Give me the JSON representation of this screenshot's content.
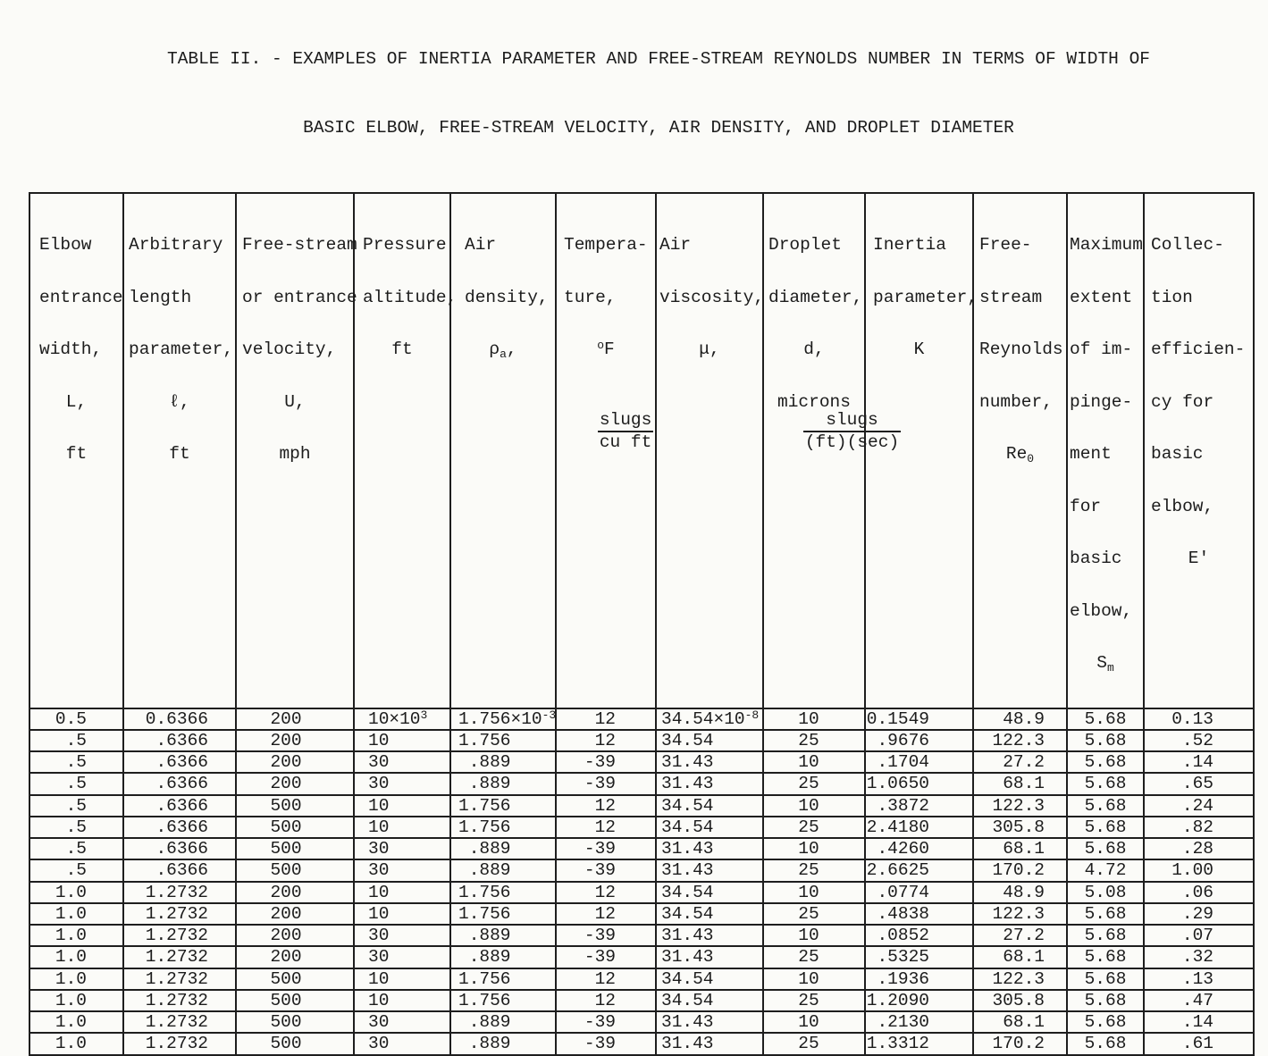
{
  "page": {
    "title_line1": "TABLE II. - EXAMPLES OF INERTIA PARAMETER AND FREE-STREAM REYNOLDS NUMBER IN TERMS OF WIDTH OF",
    "title_line2": "BASIC ELBOW, FREE-STREAM VELOCITY, AIR DENSITY, AND DROPLET DIAMETER"
  },
  "table": {
    "headers": [
      {
        "id": "elbow-entrance-width",
        "lines": [
          "Elbow",
          "entrance",
          "width,"
        ],
        "symbol": "L,",
        "unit": "ft"
      },
      {
        "id": "arbitrary-length-parameter",
        "lines": [
          "Arbitrary",
          "length",
          "parameter,"
        ],
        "symbol": "ℓ,",
        "unit": "ft"
      },
      {
        "id": "free-stream-velocity",
        "lines": [
          "Free-stream",
          "or entrance",
          "velocity,"
        ],
        "symbol": "U,",
        "unit": "mph"
      },
      {
        "id": "pressure-altitude",
        "lines": [
          "Pressure",
          "altitude,"
        ],
        "unit": "ft"
      },
      {
        "id": "air-density",
        "lines": [
          "Air",
          "density,"
        ],
        "symbol_base": "ρ",
        "symbol_sub": "a",
        "symbol_tail": ",",
        "frac_num": "slugs",
        "frac_den": "cu ft"
      },
      {
        "id": "temperature",
        "lines": [
          "Tempera-",
          "ture,"
        ],
        "unit_sup": "o",
        "unit_base": "F"
      },
      {
        "id": "air-viscosity",
        "lines": [
          "Air",
          "viscosity,"
        ],
        "symbol": "μ,",
        "frac_num": "slugs",
        "frac_den": "(ft)(sec)"
      },
      {
        "id": "droplet-diameter",
        "lines": [
          "Droplet",
          "diameter,"
        ],
        "symbol": "d,",
        "unit": "microns"
      },
      {
        "id": "inertia-parameter",
        "lines": [
          "Inertia",
          "parameter,"
        ],
        "symbol": "K"
      },
      {
        "id": "free-stream-reynolds-number",
        "lines": [
          "Free-",
          "stream",
          "Reynolds",
          "number,"
        ],
        "symbol_base": "Re",
        "symbol_sub": "0"
      },
      {
        "id": "maximum-extent-impingement",
        "lines": [
          "Maximum",
          "extent",
          "of im-",
          "pinge-",
          "ment",
          "for",
          "basic",
          "elbow,"
        ],
        "symbol_base": "S",
        "symbol_sub": "m"
      },
      {
        "id": "collection-efficiency",
        "lines": [
          "Collec-",
          "tion",
          "efficien-",
          "cy for",
          "basic",
          "elbow,"
        ],
        "symbol": "E'"
      }
    ],
    "rows": [
      [
        "0.5",
        "0.6366",
        "200",
        "10×10^3",
        "1.756×10^-3",
        "12",
        "34.54×10^-8",
        "10",
        "0.1549",
        "48.9",
        "5.68",
        "0.13"
      ],
      [
        ".5",
        ".6366",
        "200",
        "10",
        "1.756",
        "12",
        "34.54",
        "25",
        ".9676",
        "122.3",
        "5.68",
        ".52"
      ],
      [
        ".5",
        ".6366",
        "200",
        "30",
        " .889",
        "-39",
        "31.43",
        "10",
        ".1704",
        "27.2",
        "5.68",
        ".14"
      ],
      [
        ".5",
        ".6366",
        "200",
        "30",
        " .889",
        "-39",
        "31.43",
        "25",
        "1.0650",
        "68.1",
        "5.68",
        ".65"
      ],
      [
        ".5",
        ".6366",
        "500",
        "10",
        "1.756",
        "12",
        "34.54",
        "10",
        ".3872",
        "122.3",
        "5.68",
        ".24"
      ],
      [
        ".5",
        ".6366",
        "500",
        "10",
        "1.756",
        "12",
        "34.54",
        "25",
        "2.4180",
        "305.8",
        "5.68",
        ".82"
      ],
      [
        ".5",
        ".6366",
        "500",
        "30",
        " .889",
        "-39",
        "31.43",
        "10",
        ".4260",
        "68.1",
        "5.68",
        ".28"
      ],
      [
        ".5",
        ".6366",
        "500",
        "30",
        " .889",
        "-39",
        "31.43",
        "25",
        "2.6625",
        "170.2",
        "4.72",
        "1.00"
      ],
      [
        "1.0",
        "1.2732",
        "200",
        "10",
        "1.756",
        "12",
        "34.54",
        "10",
        ".0774",
        "48.9",
        "5.08",
        ".06"
      ],
      [
        "1.0",
        "1.2732",
        "200",
        "10",
        "1.756",
        "12",
        "34.54",
        "25",
        ".4838",
        "122.3",
        "5.68",
        ".29"
      ],
      [
        "1.0",
        "1.2732",
        "200",
        "30",
        " .889",
        "-39",
        "31.43",
        "10",
        ".0852",
        "27.2",
        "5.68",
        ".07"
      ],
      [
        "1.0",
        "1.2732",
        "200",
        "30",
        " .889",
        "-39",
        "31.43",
        "25",
        ".5325",
        "68.1",
        "5.68",
        ".32"
      ],
      [
        "1.0",
        "1.2732",
        "500",
        "10",
        "1.756",
        "12",
        "34.54",
        "10",
        ".1936",
        "122.3",
        "5.68",
        ".13"
      ],
      [
        "1.0",
        "1.2732",
        "500",
        "10",
        "1.756",
        "12",
        "34.54",
        "25",
        "1.2090",
        "305.8",
        "5.68",
        ".47"
      ],
      [
        "1.0",
        "1.2732",
        "500",
        "30",
        " .889",
        "-39",
        "31.43",
        "10",
        ".2130",
        "68.1",
        "5.68",
        ".14"
      ],
      [
        "1.0",
        "1.2732",
        "500",
        "30",
        " .889",
        "-39",
        "31.43",
        "25",
        "1.3312",
        "170.2",
        "5.68",
        ".61"
      ]
    ]
  }
}
